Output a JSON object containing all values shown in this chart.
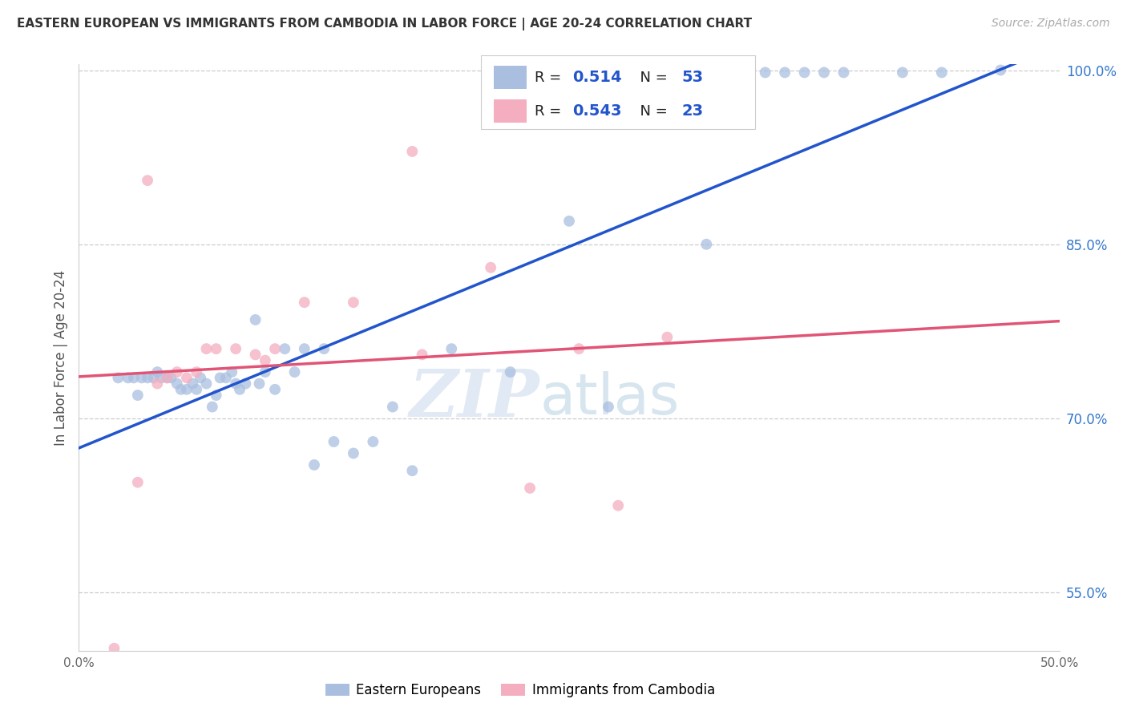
{
  "title": "EASTERN EUROPEAN VS IMMIGRANTS FROM CAMBODIA IN LABOR FORCE | AGE 20-24 CORRELATION CHART",
  "source": "Source: ZipAtlas.com",
  "ylabel": "In Labor Force | Age 20-24",
  "xlim": [
    0.0,
    0.5
  ],
  "ylim": [
    0.5,
    1.005
  ],
  "xticks": [
    0.0,
    0.1,
    0.2,
    0.3,
    0.4,
    0.5
  ],
  "xtick_labels": [
    "0.0%",
    "",
    "",
    "",
    "",
    "50.0%"
  ],
  "yticks_right": [
    0.55,
    0.7,
    0.85,
    1.0
  ],
  "ytick_labels_right": [
    "55.0%",
    "70.0%",
    "85.0%",
    "100.0%"
  ],
  "yticks_grid": [
    0.55,
    0.7,
    0.85,
    1.0
  ],
  "blue_color": "#aabfe0",
  "pink_color": "#f4aec0",
  "blue_line_color": "#2255cc",
  "pink_line_color": "#e05575",
  "R_blue": 0.514,
  "N_blue": 53,
  "R_pink": 0.543,
  "N_pink": 23,
  "legend_labels": [
    "Eastern Europeans",
    "Immigrants from Cambodia"
  ],
  "watermark_zip": "ZIP",
  "watermark_atlas": "atlas",
  "blue_scatter_x": [
    0.02,
    0.025,
    0.028,
    0.03,
    0.032,
    0.035,
    0.038,
    0.04,
    0.042,
    0.045,
    0.047,
    0.05,
    0.052,
    0.055,
    0.058,
    0.06,
    0.062,
    0.065,
    0.068,
    0.07,
    0.072,
    0.075,
    0.078,
    0.08,
    0.082,
    0.085,
    0.09,
    0.092,
    0.095,
    0.1,
    0.105,
    0.11,
    0.115,
    0.12,
    0.125,
    0.13,
    0.14,
    0.15,
    0.16,
    0.17,
    0.19,
    0.22,
    0.25,
    0.27,
    0.32,
    0.35,
    0.36,
    0.37,
    0.38,
    0.39,
    0.42,
    0.44,
    0.47
  ],
  "blue_scatter_y": [
    0.735,
    0.735,
    0.735,
    0.72,
    0.735,
    0.735,
    0.735,
    0.74,
    0.735,
    0.735,
    0.735,
    0.73,
    0.725,
    0.725,
    0.73,
    0.725,
    0.735,
    0.73,
    0.71,
    0.72,
    0.735,
    0.735,
    0.74,
    0.73,
    0.725,
    0.73,
    0.785,
    0.73,
    0.74,
    0.725,
    0.76,
    0.74,
    0.76,
    0.66,
    0.76,
    0.68,
    0.67,
    0.68,
    0.71,
    0.655,
    0.76,
    0.74,
    0.87,
    0.71,
    0.85,
    0.998,
    0.998,
    0.998,
    0.998,
    0.998,
    0.998,
    0.998,
    1.0
  ],
  "pink_scatter_x": [
    0.018,
    0.03,
    0.04,
    0.045,
    0.05,
    0.055,
    0.06,
    0.065,
    0.07,
    0.08,
    0.09,
    0.095,
    0.1,
    0.115,
    0.14,
    0.17,
    0.175,
    0.21,
    0.23,
    0.255,
    0.275,
    0.3,
    0.035
  ],
  "pink_scatter_y": [
    0.502,
    0.645,
    0.73,
    0.735,
    0.74,
    0.735,
    0.74,
    0.76,
    0.76,
    0.76,
    0.755,
    0.75,
    0.76,
    0.8,
    0.8,
    0.93,
    0.755,
    0.83,
    0.64,
    0.76,
    0.625,
    0.77,
    0.905
  ]
}
